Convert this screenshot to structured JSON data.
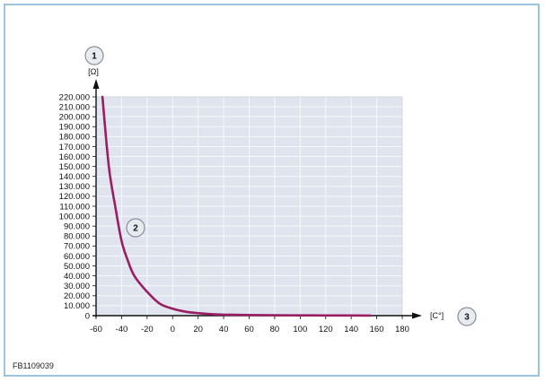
{
  "figure_id": "FB1109039",
  "colors": {
    "frame_border": "#9ec3df",
    "plot_background": "#dfe4ee",
    "grid": "#f7f8fb",
    "curve": "#9a1e64",
    "callout_fill": "#e8ebf0",
    "callout_stroke": "#8a8f99",
    "axis": "#111111"
  },
  "callouts": [
    {
      "id": "1",
      "label": "1"
    },
    {
      "id": "2",
      "label": "2"
    },
    {
      "id": "3",
      "label": "3"
    }
  ],
  "chart_data": {
    "type": "line",
    "title": "",
    "ylabel": "[Ω]",
    "xlabel": "[C°]",
    "xlim": [
      -60,
      180
    ],
    "ylim": [
      0,
      220000
    ],
    "x_ticks": [
      -60,
      -40,
      -20,
      0,
      20,
      40,
      60,
      80,
      100,
      120,
      140,
      160,
      180
    ],
    "x_tick_labels": [
      "-60",
      "-40",
      "-20",
      "0",
      "20",
      "40",
      "60",
      "80",
      "100",
      "120",
      "140",
      "160",
      "180"
    ],
    "y_ticks": [
      0,
      10000,
      20000,
      30000,
      40000,
      50000,
      60000,
      70000,
      80000,
      90000,
      100000,
      110000,
      120000,
      130000,
      140000,
      150000,
      160000,
      170000,
      180000,
      190000,
      200000,
      210000,
      220000
    ],
    "y_tick_labels": [
      "0",
      "10.000",
      "20.000",
      "30.000",
      "40.000",
      "50.000",
      "60.000",
      "70.000",
      "80.000",
      "90.000",
      "100.000",
      "110.000",
      "120.000",
      "130.000",
      "140.000",
      "150.000",
      "160.000",
      "170.000",
      "180.000",
      "190.000",
      "200.000",
      "210.000",
      "220.000"
    ],
    "grid": true,
    "series": [
      {
        "x": [
          -55,
          -50,
          -45,
          -40,
          -35,
          -30,
          -20,
          -10,
          0,
          10,
          20,
          30,
          40,
          60,
          80,
          100,
          120,
          140,
          155
        ],
        "y": [
          220000,
          150000,
          110000,
          75000,
          55000,
          40000,
          24000,
          12000,
          7000,
          4000,
          2500,
          1500,
          1000,
          600,
          400,
          300,
          200,
          150,
          100
        ]
      }
    ]
  }
}
